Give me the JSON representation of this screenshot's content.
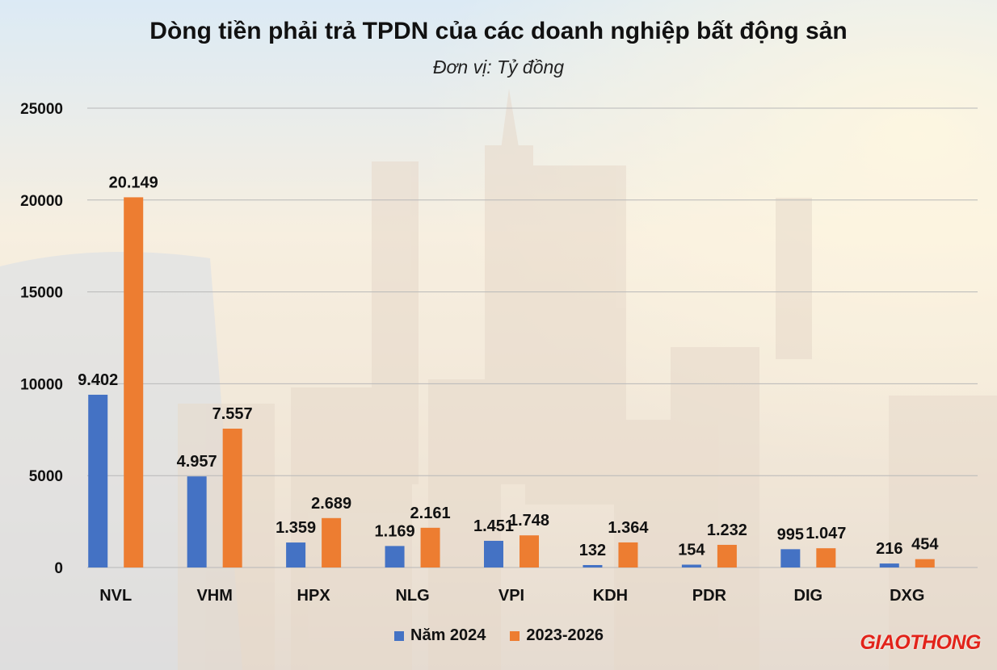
{
  "header": {
    "title": "Dòng tiền phải trả TPDN của các doanh nghiệp bất động sản",
    "subtitle": "Đơn vị: Tỷ đồng"
  },
  "brand": {
    "logo_text": "GIAOTHONG",
    "logo_color": "#e2231a"
  },
  "chart_data": {
    "type": "bar",
    "title": "Dòng tiền phải trả TPDN của các doanh nghiệp bất động sản",
    "subtitle": "Đơn vị: Tỷ đồng",
    "xlabel": "",
    "ylabel": "",
    "ylim": [
      0,
      25000
    ],
    "yticks": [
      0,
      5000,
      10000,
      15000,
      20000,
      25000
    ],
    "grid": true,
    "legend_position": "bottom",
    "categories": [
      "NVL",
      "VHM",
      "HPX",
      "NLG",
      "VPI",
      "KDH",
      "PDR",
      "DIG",
      "DXG"
    ],
    "series": [
      {
        "name": "Năm 2024",
        "color": "#4472c4",
        "values": [
          9402,
          4957,
          1359,
          1169,
          1451,
          132,
          154,
          995,
          216
        ],
        "labels": [
          "9.402",
          "4.957",
          "1.359",
          "1.169",
          "1.451",
          "132",
          "154",
          "995",
          "216"
        ]
      },
      {
        "name": "2023-2026",
        "color": "#ed7d31",
        "values": [
          20149,
          7557,
          2689,
          2161,
          1748,
          1364,
          1232,
          1047,
          454
        ],
        "labels": [
          "20.149",
          "7.557",
          "2.689",
          "2.161",
          "1.748",
          "1.364",
          "1.232",
          "1.047",
          "454"
        ]
      }
    ]
  }
}
